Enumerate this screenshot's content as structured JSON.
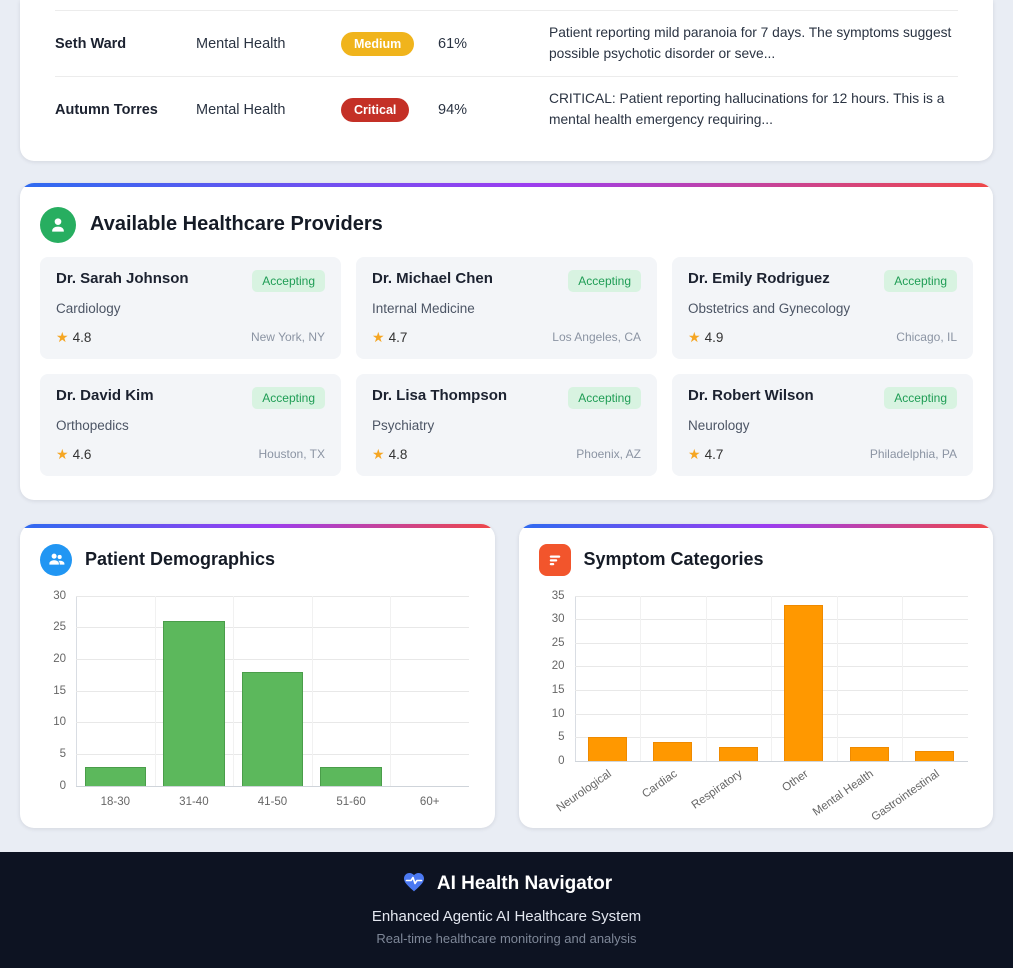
{
  "triage_table": {
    "rows": [
      {
        "name": "Seth Ward",
        "condition": "Mental Health",
        "severity": "Medium",
        "severity_color": "#f0b41c",
        "confidence": "61%",
        "description": "Patient reporting mild paranoia for 7 days. The symptoms suggest possible psychotic disorder or seve..."
      },
      {
        "name": "Autumn Torres",
        "condition": "Mental Health",
        "severity": "Critical",
        "severity_color": "#c43026",
        "confidence": "94%",
        "description": "CRITICAL: Patient reporting hallucinations for 12 hours. This is a mental health emergency requiring..."
      }
    ]
  },
  "providers": {
    "title": "Available Healthcare Providers",
    "cards": [
      {
        "name": "Dr. Sarah Johnson",
        "status": "Accepting",
        "specialty": "Cardiology",
        "rating": "4.8",
        "location": "New York, NY"
      },
      {
        "name": "Dr. Michael Chen",
        "status": "Accepting",
        "specialty": "Internal Medicine",
        "rating": "4.7",
        "location": "Los Angeles, CA"
      },
      {
        "name": "Dr. Emily Rodriguez",
        "status": "Accepting",
        "specialty": "Obstetrics and Gynecology",
        "rating": "4.9",
        "location": "Chicago, IL"
      },
      {
        "name": "Dr. David Kim",
        "status": "Accepting",
        "specialty": "Orthopedics",
        "rating": "4.6",
        "location": "Houston, TX"
      },
      {
        "name": "Dr. Lisa Thompson",
        "status": "Accepting",
        "specialty": "Psychiatry",
        "rating": "4.8",
        "location": "Phoenix, AZ"
      },
      {
        "name": "Dr. Robert Wilson",
        "status": "Accepting",
        "specialty": "Neurology",
        "rating": "4.7",
        "location": "Philadelphia, PA"
      }
    ]
  },
  "charts": {
    "demographics_title": "Patient Demographics",
    "symptoms_title": "Symptom Categories"
  },
  "chart_data": [
    {
      "type": "bar",
      "title": "Patient Demographics",
      "categories": [
        "18-30",
        "31-40",
        "41-50",
        "51-60",
        "60+"
      ],
      "values": [
        3,
        26,
        18,
        3,
        0
      ],
      "ylim": [
        0,
        30
      ],
      "ytick_step": 5,
      "grid": true,
      "legend": "none",
      "bar_color": "#5cb85c",
      "bar_border": "#4a9d4a",
      "bar_fraction": 0.78,
      "label_rotation": 0
    },
    {
      "type": "bar",
      "title": "Symptom Categories",
      "categories": [
        "Neurological",
        "Cardiac",
        "Respiratory",
        "Other",
        "Mental Health",
        "Gastrointestinal"
      ],
      "values": [
        5,
        4,
        3,
        33,
        3,
        2
      ],
      "ylim": [
        0,
        35
      ],
      "ytick_step": 5,
      "grid": true,
      "legend": "none",
      "bar_color": "#ff9800",
      "bar_border": "#ef8a00",
      "bar_fraction": 0.6,
      "label_rotation": -35
    }
  ],
  "footer": {
    "title": "AI Health Navigator",
    "subtitle": "Enhanced Agentic AI Healthcare System",
    "tagline": "Real-time healthcare monitoring and analysis"
  },
  "icons": {
    "star_glyph": "★",
    "providers_header": "user-icon",
    "demographics_header": "users-icon",
    "symptoms_header": "bar-chart-icon",
    "footer": "heart-pulse-icon"
  },
  "colors": {
    "page_background": "#e9edf4",
    "accent_gradient": [
      "#2e6bf0",
      "#9b3df0",
      "#ef4747"
    ],
    "medium_badge": "#f0b41c",
    "critical_badge": "#c43026",
    "accepting_bg": "#d8f3e1",
    "accepting_text": "#1f9d55",
    "provider_icon_bg": "#27ae60",
    "demographics_icon_bg": "#2196f3",
    "symptoms_icon_bg": "#f2552c",
    "star": "#f5a623",
    "footer_bg": "#0d1322"
  }
}
